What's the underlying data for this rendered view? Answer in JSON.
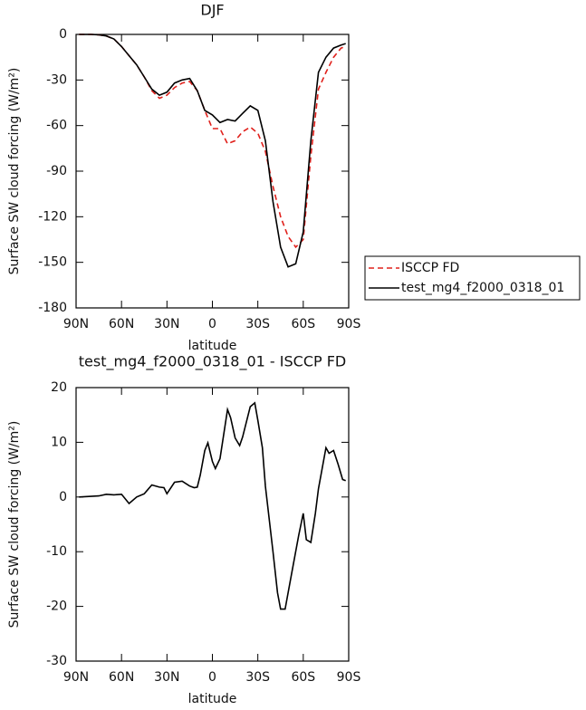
{
  "chart_data": [
    {
      "type": "line",
      "title": "DJF",
      "xlabel": "latitude",
      "ylabel": "Surface SW cloud forcing (W/m²)",
      "x": [
        88,
        85,
        80,
        75,
        70,
        65,
        60,
        55,
        50,
        45,
        40,
        35,
        30,
        25,
        20,
        15,
        10,
        5,
        0,
        -5,
        -10,
        -15,
        -20,
        -25,
        -30,
        -35,
        -40,
        -45,
        -50,
        -55,
        -60,
        -65,
        -70,
        -75,
        -80,
        -85,
        -88
      ],
      "series": [
        {
          "name": "ISCCP FD",
          "color": "#e0201b",
          "dash": "dashed",
          "values": [
            0,
            0,
            0,
            -0.3,
            -1,
            -3,
            -8,
            -14,
            -20,
            -28,
            -37,
            -42,
            -40,
            -35,
            -32,
            -31,
            -37,
            -50,
            -62,
            -62,
            -72,
            -70,
            -64,
            -61,
            -65,
            -77,
            -100,
            -120,
            -133,
            -140,
            -135,
            -80,
            -36,
            -25,
            -15,
            -9,
            -8
          ]
        },
        {
          "name": "test_mg4_f2000_0318_01",
          "color": "#000000",
          "dash": "solid",
          "values": [
            0,
            0,
            0,
            -0.3,
            -1,
            -3,
            -8,
            -14,
            -20,
            -28,
            -36,
            -40,
            -38,
            -32,
            -30,
            -29,
            -37,
            -50,
            -53,
            -58,
            -56,
            -57,
            -52,
            -47,
            -50,
            -70,
            -110,
            -140,
            -153,
            -151,
            -130,
            -70,
            -25,
            -15,
            -9,
            -7,
            -6
          ]
        }
      ],
      "xlim": [
        90,
        -90
      ],
      "xticks": [
        {
          "value": 90,
          "label": "90N"
        },
        {
          "value": 60,
          "label": "60N"
        },
        {
          "value": 30,
          "label": "30N"
        },
        0,
        {
          "value": -30,
          "label": "30S"
        },
        {
          "value": -60,
          "label": "60S"
        },
        {
          "value": -90,
          "label": "90S"
        }
      ],
      "ylim": [
        -180,
        0
      ],
      "yticks": [
        0,
        -30,
        -60,
        -90,
        -120,
        -150,
        -180
      ],
      "legend": "right"
    },
    {
      "type": "line",
      "title": "test_mg4_f2000_0318_01 - ISCCP FD",
      "xlabel": "latitude",
      "ylabel": "Surface SW cloud forcing (W/m²)",
      "x": [
        88,
        75,
        70,
        65,
        60,
        55,
        50,
        45,
        40,
        35,
        32,
        30,
        25,
        20,
        15,
        12,
        10,
        8,
        5,
        3,
        0,
        -2,
        -5,
        -10,
        -12,
        -15,
        -18,
        -20,
        -25,
        -28,
        -30,
        -33,
        -35,
        -40,
        -43,
        -45,
        -48,
        -50,
        -53,
        -57,
        -60,
        -62,
        -65,
        -68,
        -70,
        -75,
        -77,
        -80,
        -83,
        -86,
        -88
      ],
      "series": [
        {
          "color": "#000000",
          "dash": "solid",
          "values": [
            0,
            0.2,
            0.5,
            0.4,
            0.5,
            -1.2,
            0,
            0.6,
            2.2,
            1.8,
            1.7,
            0.6,
            2.7,
            2.9,
            2,
            1.7,
            1.8,
            4,
            8.5,
            9.9,
            6.5,
            5.2,
            7,
            16,
            14.5,
            10.8,
            9.4,
            11,
            16.5,
            17.2,
            14,
            9,
            2,
            -10,
            -17.5,
            -20.5,
            -20.5,
            -17.5,
            -13,
            -7,
            -3,
            -7.8,
            -8.3,
            -3,
            1.5,
            9,
            8,
            8.5,
            6,
            3.2,
            3
          ]
        }
      ],
      "xlim": [
        90,
        -90
      ],
      "xticks": [
        {
          "value": 90,
          "label": "90N"
        },
        {
          "value": 60,
          "label": "60N"
        },
        {
          "value": 30,
          "label": "30N"
        },
        0,
        {
          "value": -30,
          "label": "30S"
        },
        {
          "value": -60,
          "label": "60S"
        },
        {
          "value": -90,
          "label": "90S"
        }
      ],
      "ylim": [
        -30,
        20
      ],
      "yticks": [
        -30,
        -20,
        -10,
        0,
        10,
        20
      ]
    }
  ]
}
